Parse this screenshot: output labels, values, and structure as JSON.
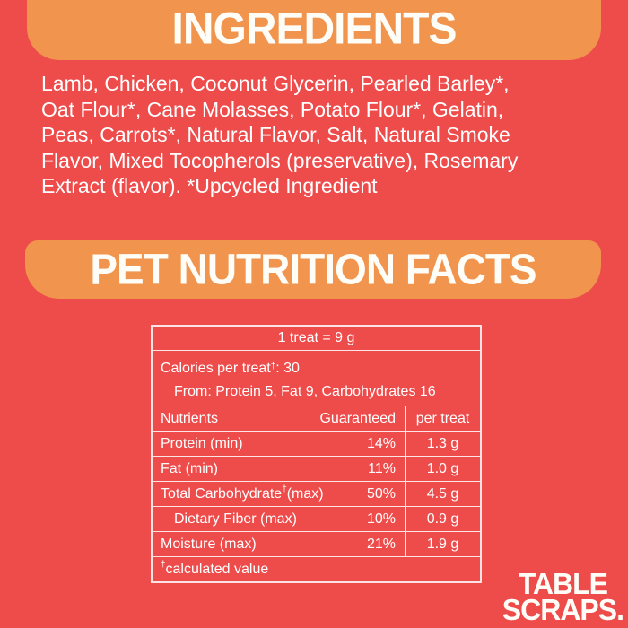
{
  "colors": {
    "background": "#EE4B4B",
    "banner": "#F0944E",
    "text": "#FFFFFF",
    "table_border": "rgba(255,255,255,0.85)"
  },
  "ingredients_section": {
    "title": "INGREDIENTS",
    "text": "Lamb, Chicken, Coconut Glycerin, Pearled Barley*,\nOat Flour*, Cane Molasses, Potato Flour*, Gelatin,\nPeas, Carrots*, Natural Flavor, Salt, Natural Smoke\nFlavor, Mixed Tocopherols (preservative), Rosemary\nExtract (flavor). *Upcycled Ingredient"
  },
  "nutrition_section": {
    "title": "PET NUTRITION FACTS",
    "table": {
      "serving": "1 treat = 9 g",
      "calories": {
        "pre": "Calories per treat",
        "sup": "†",
        "post": ": 30",
        "from": "From: Protein 5, Fat 9, Carbohydrates 16"
      },
      "headers": {
        "nutrients": "Nutrients",
        "guaranteed": "Guaranteed",
        "per_treat": "per treat"
      },
      "rows": [
        {
          "label": "Protein (min)",
          "sup": "",
          "label2": "",
          "guaranteed": "14%",
          "per_treat": "1.3 g"
        },
        {
          "label": "Fat (min)",
          "sup": "",
          "label2": "",
          "guaranteed": "11%",
          "per_treat": "1.0 g"
        },
        {
          "label": "Total Carbohydrate",
          "sup": "†",
          "label2": " (max)",
          "guaranteed": "50%",
          "per_treat": "4.5 g"
        },
        {
          "label": "Dietary Fiber (max)",
          "sup": "",
          "label2": "",
          "guaranteed": "10%",
          "per_treat": "0.9 g"
        },
        {
          "label": "Moisture (max)",
          "sup": "",
          "label2": "",
          "guaranteed": "21%",
          "per_treat": "1.9 g"
        }
      ],
      "footnote": {
        "sup": "†",
        "text": " calculated value"
      }
    }
  },
  "logo": {
    "line1": "TABLE",
    "line2": "SCRAPS."
  }
}
